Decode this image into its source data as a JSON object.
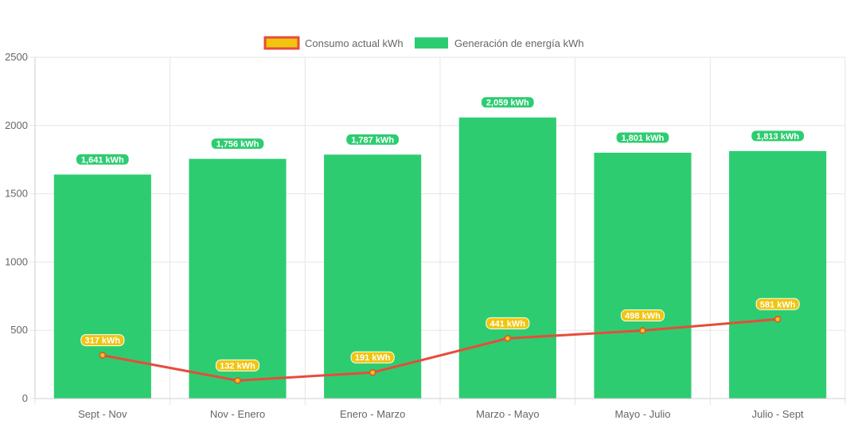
{
  "chart_data": {
    "type": "bar",
    "categories": [
      "Sept - Nov",
      "Nov - Enero",
      "Enero - Marzo",
      "Marzo - Mayo",
      "Mayo - Julio",
      "Julio - Sept"
    ],
    "series": [
      {
        "name": "Generación de energía kWh",
        "type": "bar",
        "color": "#2ecc71",
        "values": [
          1641,
          1756,
          1787,
          2059,
          1801,
          1813
        ],
        "labels": [
          "1,641 kWh",
          "1,756 kWh",
          "1,787 kWh",
          "2,059 kWh",
          "1,801 kWh",
          "1,813 kWh"
        ]
      },
      {
        "name": "Consumo actual kWh",
        "type": "line",
        "color": "#e74c3c",
        "fill": "#f1c40f",
        "values": [
          317,
          132,
          191,
          441,
          498,
          581
        ],
        "labels": [
          "317 kWh",
          "132 kWh",
          "191 kWh",
          "441 kWh",
          "498 kWh",
          "581 kWh"
        ]
      }
    ],
    "legend": [
      "Consumo actual kWh",
      "Generación de energía kWh"
    ],
    "legend_position": "top-center",
    "ylim": [
      0,
      2500
    ],
    "yticks": [
      0,
      500,
      1000,
      1500,
      2000,
      2500
    ],
    "grid": true,
    "title": "",
    "xlabel": "",
    "ylabel": ""
  }
}
